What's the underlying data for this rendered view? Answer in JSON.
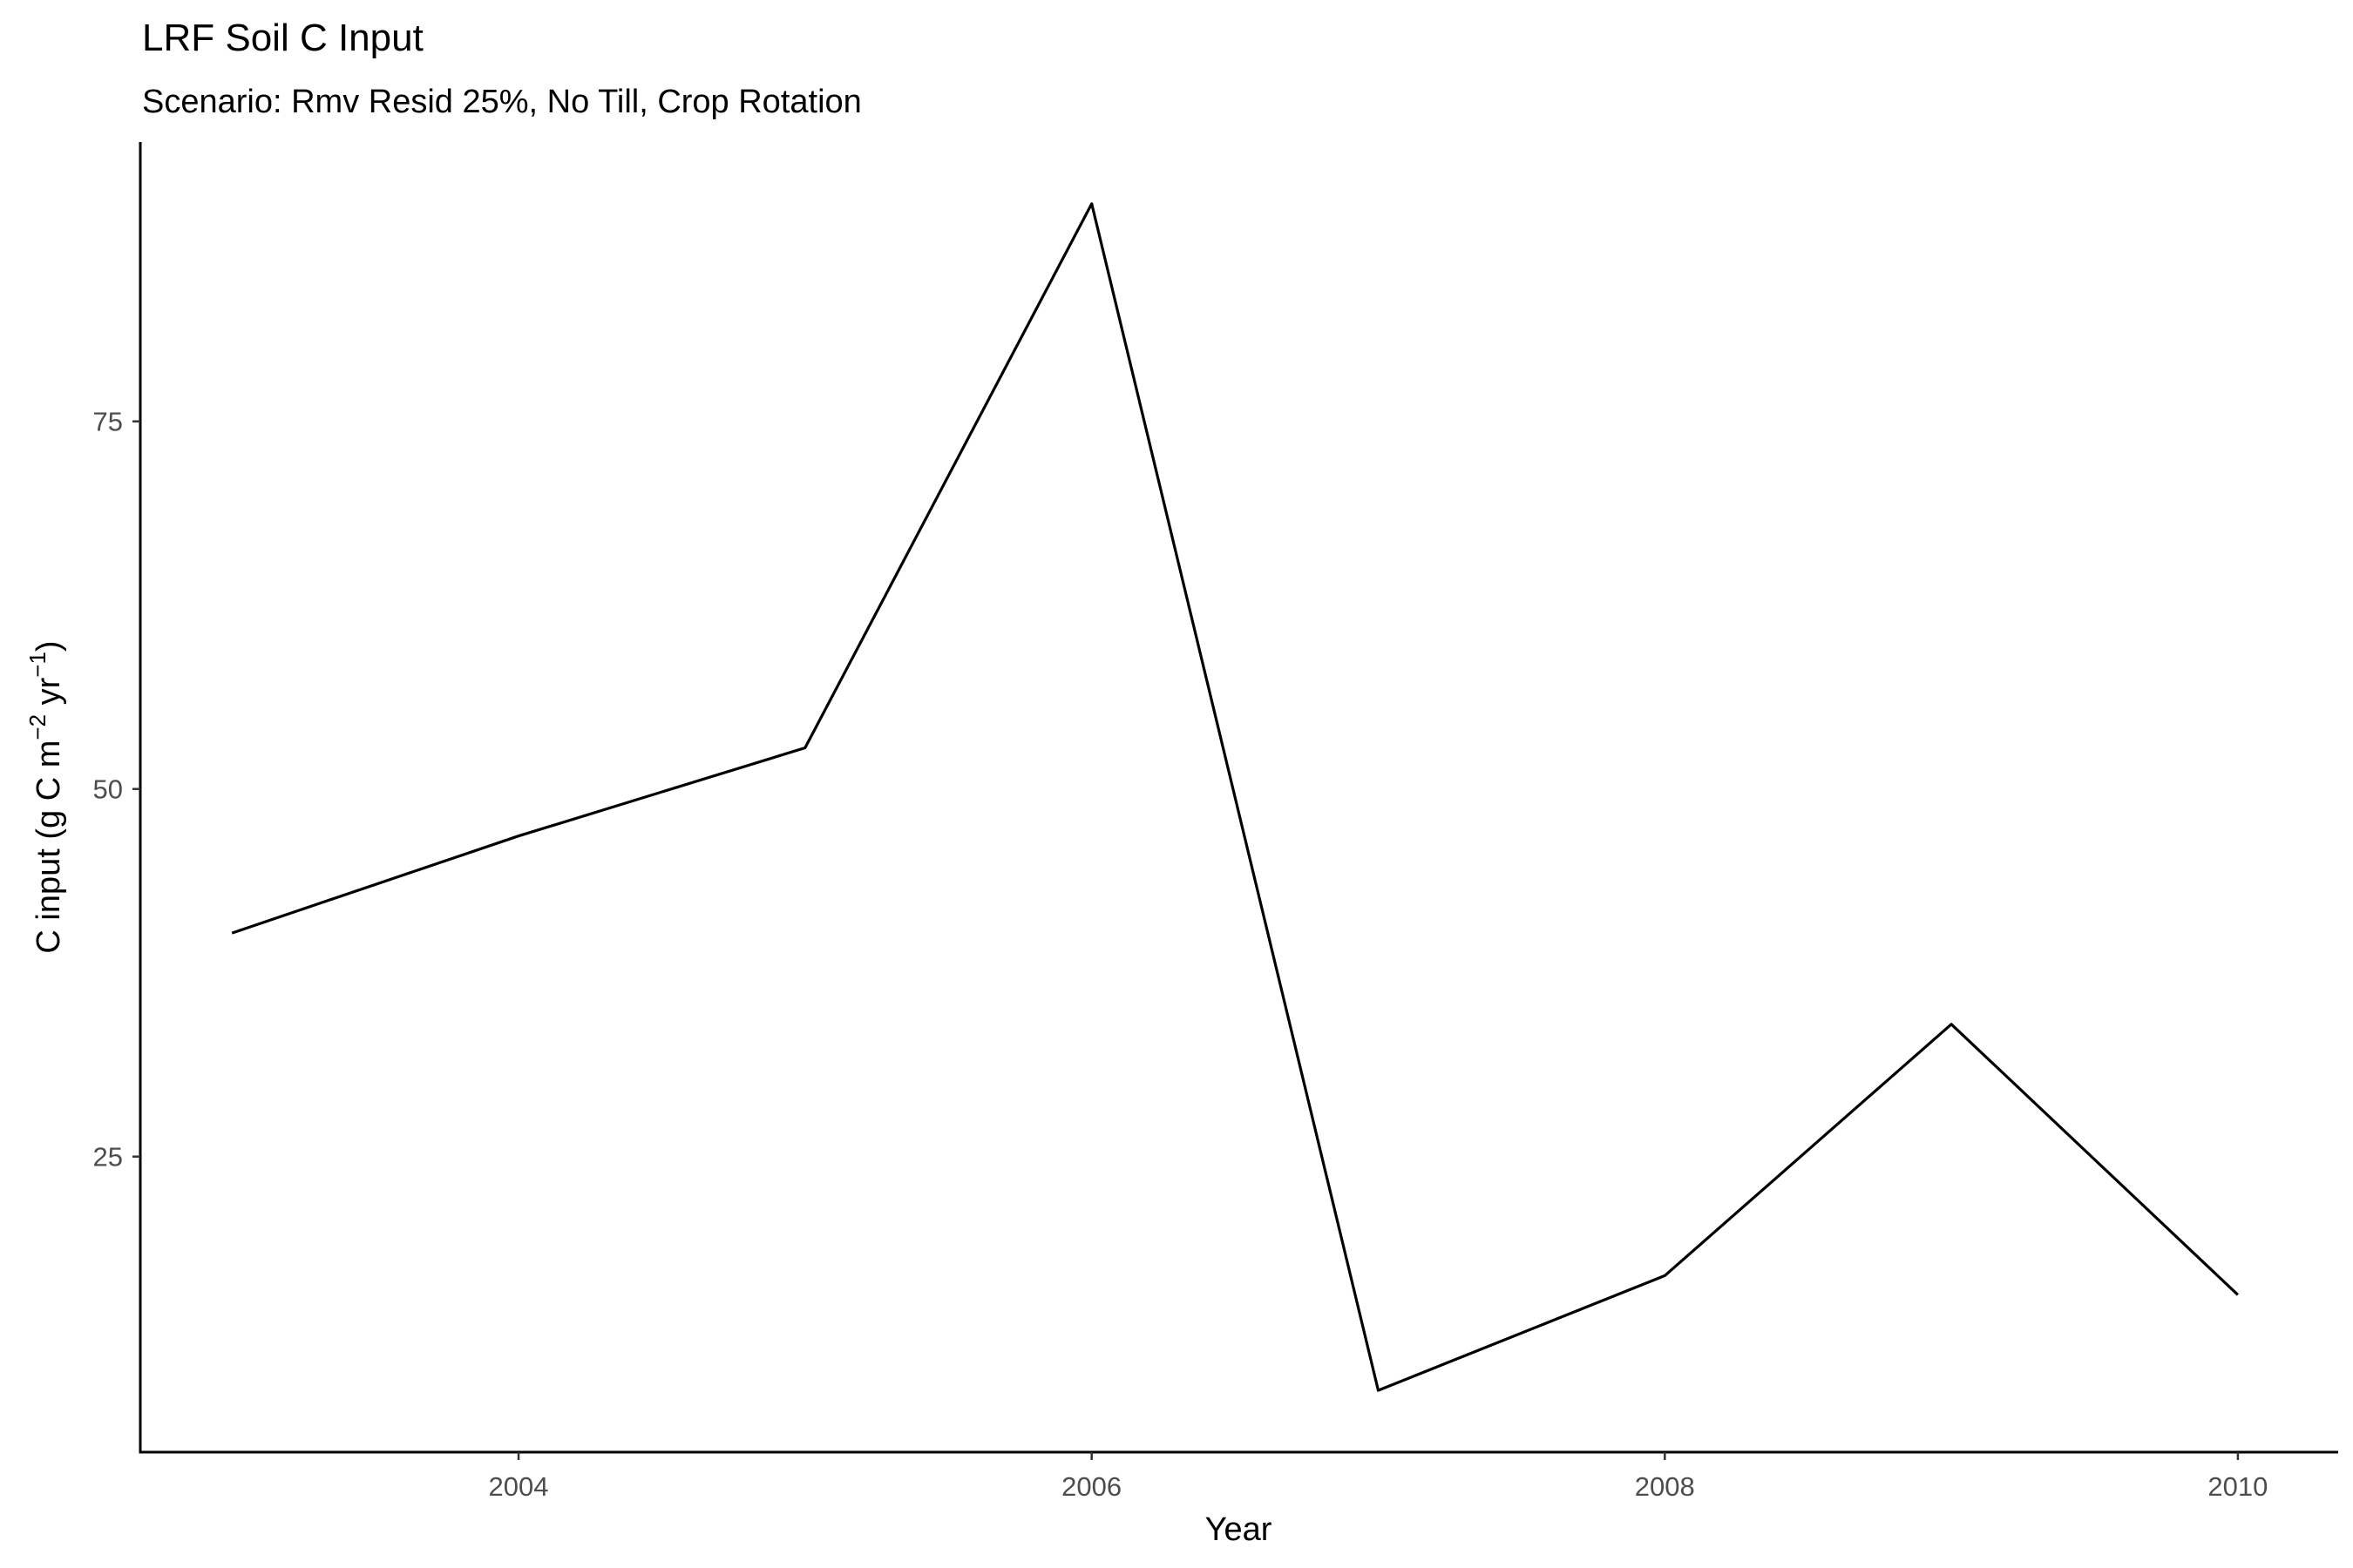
{
  "chart_data": {
    "type": "line",
    "title": "LRF Soil C Input",
    "subtitle": "Scenario: Rmv Resid 25%, No Till, Crop Rotation",
    "xlabel": "Year",
    "ylabel": {
      "prefix": "C input (g C m",
      "sup1": "−2",
      "mid": " yr",
      "sup2": "−1",
      "suffix": ")"
    },
    "x": [
      2003,
      2004,
      2005,
      2006,
      2007,
      2008,
      2009,
      2010
    ],
    "values": [
      40.2,
      46.8,
      52.8,
      89.8,
      9.1,
      16.9,
      34.0,
      15.6
    ],
    "xlim": [
      2002.68,
      2010.35
    ],
    "ylim": [
      4.9,
      94.0
    ],
    "xticks": [
      2004,
      2006,
      2008,
      2010
    ],
    "xtick_labels": [
      "2004",
      "2006",
      "2008",
      "2010"
    ],
    "yticks": [
      25,
      50,
      75
    ],
    "ytick_labels": [
      "25",
      "50",
      "75"
    ],
    "line_color": "#000000",
    "grid": false,
    "legend": "none"
  }
}
